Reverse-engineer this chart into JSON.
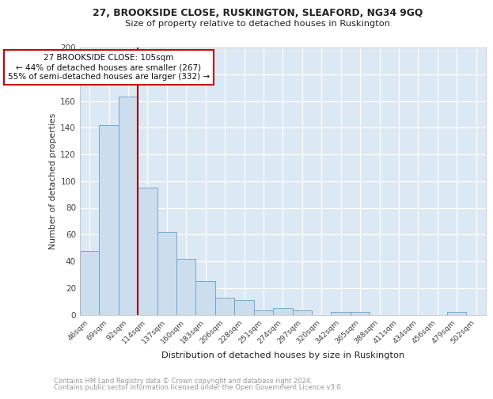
{
  "title1": "27, BROOKSIDE CLOSE, RUSKINGTON, SLEAFORD, NG34 9GQ",
  "title2": "Size of property relative to detached houses in Ruskington",
  "xlabel": "Distribution of detached houses by size in Ruskington",
  "ylabel": "Number of detached properties",
  "categories": [
    "46sqm",
    "69sqm",
    "92sqm",
    "114sqm",
    "137sqm",
    "160sqm",
    "183sqm",
    "206sqm",
    "228sqm",
    "251sqm",
    "274sqm",
    "297sqm",
    "320sqm",
    "342sqm",
    "365sqm",
    "388sqm",
    "411sqm",
    "434sqm",
    "456sqm",
    "479sqm",
    "502sqm"
  ],
  "values": [
    48,
    142,
    163,
    95,
    62,
    42,
    25,
    13,
    11,
    3,
    5,
    3,
    0,
    2,
    2,
    0,
    0,
    0,
    0,
    2,
    0
  ],
  "bar_color": "#ccdded",
  "bar_edge_color": "#6a9fc8",
  "background_color": "#dce8f4",
  "grid_color": "#ffffff",
  "redline_x": 2.5,
  "redline_color": "#990000",
  "annotation_text": "27 BROOKSIDE CLOSE: 105sqm\n← 44% of detached houses are smaller (267)\n55% of semi-detached houses are larger (332) →",
  "annotation_box_color": "#ffffff",
  "annotation_box_edge": "#cc0000",
  "ylim": [
    0,
    200
  ],
  "yticks": [
    0,
    20,
    40,
    60,
    80,
    100,
    120,
    140,
    160,
    180,
    200
  ],
  "footer1": "Contains HM Land Registry data © Crown copyright and database right 2024.",
  "footer2": "Contains public sector information licensed under the Open Government Licence v3.0."
}
